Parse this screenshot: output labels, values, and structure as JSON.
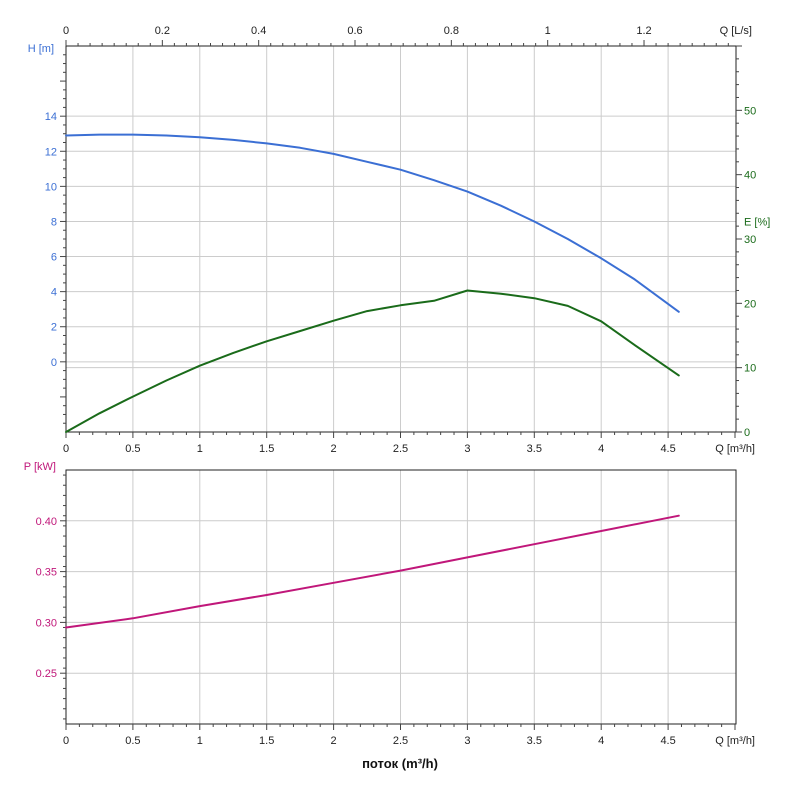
{
  "chart_data": [
    {
      "type": "line",
      "id": "head-efficiency",
      "x": {
        "label": "Q [m³/h]",
        "range": [
          0,
          5.0
        ],
        "ticks": [
          0,
          0.5,
          1,
          1.5,
          2,
          2.5,
          3,
          3.5,
          4,
          4.5
        ],
        "tick_labels": [
          "0",
          "0.5",
          "1",
          "1.5",
          "2",
          "2.5",
          "3",
          "3.5",
          "4",
          "4.5"
        ]
      },
      "x_top": {
        "label": "Q [L/s]",
        "ticks": [
          0,
          0.2,
          0.4,
          0.6,
          0.8,
          1,
          1.2
        ],
        "tick_labels": [
          "0",
          "0.2",
          "0.4",
          "0.6",
          "0.8",
          "1",
          "1.2"
        ]
      },
      "y_left": {
        "label": "H [m]",
        "range": [
          -4,
          18
        ],
        "ticks": [
          0,
          2,
          4,
          6,
          8,
          10,
          12,
          14
        ],
        "tick_labels": [
          "0",
          "2",
          "4",
          "6",
          "8",
          "10",
          "12",
          "14"
        ],
        "color": "#3b6fd4"
      },
      "y_right": {
        "label": "E [%]",
        "range": [
          0,
          60
        ],
        "ticks": [
          0,
          10,
          20,
          30,
          40,
          50
        ],
        "tick_labels": [
          "0",
          "10",
          "20",
          "30",
          "40",
          "50"
        ],
        "color": "#1a6b1a"
      },
      "grid": true,
      "series": [
        {
          "axis": "left",
          "color": "#3b6fd4",
          "x": [
            0,
            0.25,
            0.5,
            0.75,
            1.0,
            1.25,
            1.5,
            1.75,
            2.0,
            2.25,
            2.5,
            2.75,
            3.0,
            3.25,
            3.5,
            3.75,
            4.0,
            4.25,
            4.58
          ],
          "y": [
            12.9,
            12.95,
            12.95,
            12.9,
            12.8,
            12.65,
            12.45,
            12.2,
            11.85,
            11.4,
            10.95,
            10.35,
            9.7,
            8.9,
            8.0,
            7.0,
            5.9,
            4.7,
            2.85
          ]
        },
        {
          "axis": "right",
          "color": "#1a6b1a",
          "x": [
            0,
            0.25,
            0.5,
            0.75,
            1.0,
            1.25,
            1.5,
            1.75,
            2.0,
            2.25,
            2.5,
            2.75,
            3.0,
            3.25,
            3.5,
            3.75,
            4.0,
            4.25,
            4.58
          ],
          "y": [
            0,
            2.9,
            5.5,
            8.0,
            10.3,
            12.3,
            14.1,
            15.7,
            17.3,
            18.8,
            19.7,
            20.4,
            22.0,
            21.5,
            20.8,
            19.6,
            17.2,
            13.5,
            8.8
          ]
        }
      ]
    },
    {
      "type": "line",
      "id": "power",
      "x": {
        "label": "Q [m³/h]",
        "range": [
          0,
          5.0
        ],
        "ticks": [
          0,
          0.5,
          1,
          1.5,
          2,
          2.5,
          3,
          3.5,
          4,
          4.5
        ],
        "tick_labels": [
          "0",
          "0.5",
          "1",
          "1.5",
          "2",
          "2.5",
          "3",
          "3.5",
          "4",
          "4.5"
        ]
      },
      "y_left": {
        "label": "P [kW]",
        "range": [
          0.2,
          0.45
        ],
        "ticks": [
          0.25,
          0.3,
          0.35,
          0.4
        ],
        "tick_labels": [
          "0.25",
          "0.30",
          "0.35",
          "0.40"
        ],
        "color": "#c0177a"
      },
      "grid": true,
      "series": [
        {
          "axis": "left",
          "color": "#c0177a",
          "x": [
            0,
            0.5,
            1.0,
            1.5,
            2.0,
            2.5,
            3.0,
            3.5,
            4.0,
            4.58
          ],
          "y": [
            0.295,
            0.304,
            0.316,
            0.327,
            0.339,
            0.351,
            0.364,
            0.377,
            0.39,
            0.405
          ]
        }
      ]
    }
  ],
  "footer_label": "поток (m³/h)"
}
